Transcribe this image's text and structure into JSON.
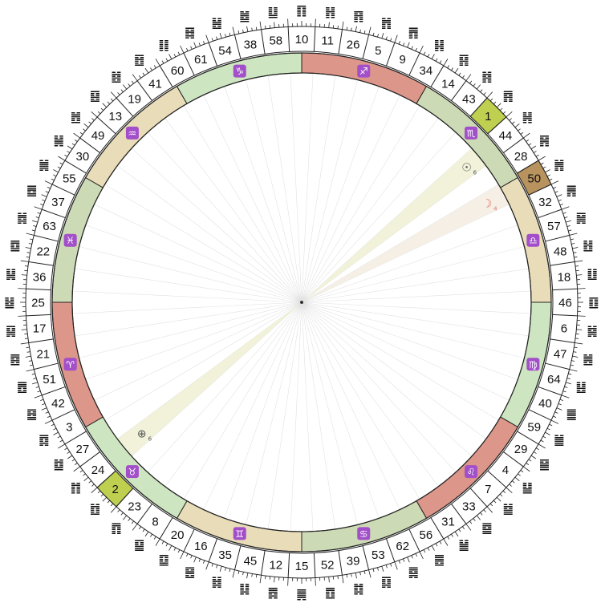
{
  "gates_clockwise_from_top": [
    "10",
    "11",
    "26",
    "5",
    "9",
    "34",
    "14",
    "43",
    "1",
    "44",
    "28",
    "50",
    "32",
    "57",
    "48",
    "18",
    "46",
    "6",
    "47",
    "64",
    "40",
    "59",
    "29",
    "4",
    "7",
    "33",
    "31",
    "56",
    "62",
    "53",
    "39",
    "52",
    "15",
    "12",
    "45",
    "35",
    "16",
    "20",
    "8",
    "23",
    "2",
    "24",
    "27",
    "3",
    "42",
    "51",
    "21",
    "17",
    "25",
    "36",
    "22",
    "63",
    "37",
    "55",
    "30",
    "49",
    "13",
    "19",
    "41",
    "60",
    "61",
    "54",
    "38",
    "58"
  ],
  "highlighted_gates": [
    {
      "gate": "1",
      "color": "#bfcf4f"
    },
    {
      "gate": "50",
      "color": "#b8935e"
    },
    {
      "gate": "2",
      "color": "#bfcf4f"
    }
  ],
  "hexagrams_clockwise_from_top": [
    "䷖",
    "䷏",
    "䷢",
    "䷬",
    "䷋",
    "䷎",
    "䷳",
    "䷦",
    "䷴",
    "䷽",
    "䷷",
    "䷞",
    "䷠",
    "䷱",
    "䷲",
    "䷗",
    "䷚",
    "䷯",
    "䷰",
    "䷣",
    "䷀",
    "䷪",
    "䷍",
    "䷊",
    "䷄",
    "䷈",
    "䷡",
    "䷌",
    "䷸",
    "䷃",
    "䷜",
    "䷩",
    "䷫",
    "䷅",
    "䷆",
    "䷧",
    "䷝",
    "䷨",
    "䷙",
    "䷓",
    "䷂",
    "䷇",
    "䷻",
    "䷺",
    "䷥",
    "䷘",
    "䷤",
    "䷑",
    "䷵",
    "䷭",
    "䷼",
    "䷮",
    "䷉",
    "䷛",
    "䷟",
    "䷐",
    "䷕",
    "䷾",
    "䷔",
    "䷁",
    "䷿",
    "䷶",
    "䷹",
    "䷒"
  ],
  "zodiac_signs": [
    {
      "name": "sagittarius",
      "glyph": "♐",
      "color": "#dd968a"
    },
    {
      "name": "scorpio",
      "glyph": "♏",
      "color": "#cddab6"
    },
    {
      "name": "libra",
      "glyph": "♎",
      "color": "#e9dcb8"
    },
    {
      "name": "virgo",
      "glyph": "♍",
      "color": "#cde6c1"
    },
    {
      "name": "leo",
      "glyph": "♌",
      "color": "#dd968a"
    },
    {
      "name": "cancer",
      "glyph": "♋",
      "color": "#cddab6"
    },
    {
      "name": "gemini",
      "glyph": "♊",
      "color": "#e9dcb8"
    },
    {
      "name": "taurus",
      "glyph": "♉",
      "color": "#cde6c1"
    },
    {
      "name": "aries",
      "glyph": "♈",
      "color": "#dd968a"
    },
    {
      "name": "pisces",
      "glyph": "♓",
      "color": "#cddab6"
    },
    {
      "name": "aquarius",
      "glyph": "♒",
      "color": "#e9dcb8"
    },
    {
      "name": "capricorn",
      "glyph": "♑",
      "color": "#cde6c1"
    }
  ],
  "zodiac_badge_color": "#a24fc9",
  "planets": [
    {
      "name": "sun",
      "symbol": "☉",
      "line": "6",
      "color": "#555555",
      "beam_color": "#eef0d2"
    },
    {
      "name": "moon",
      "symbol": "☽",
      "line": "4",
      "color": "#e57865",
      "beam_color": "#f3ece2"
    },
    {
      "name": "earth",
      "symbol": "⊕",
      "line": "6",
      "color": "#555555",
      "beam_color": "#eef0d2"
    }
  ]
}
